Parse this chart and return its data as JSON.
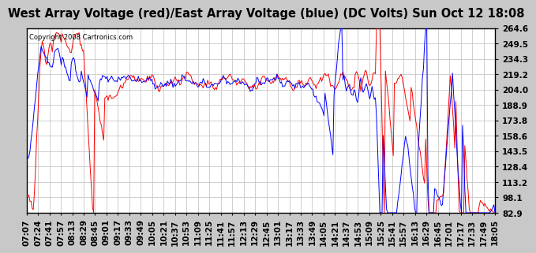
{
  "title": "West Array Voltage (red)/East Array Voltage (blue) (DC Volts) Sun Oct 12 18:08",
  "copyright": "Copyright 2008 Cartronics.com",
  "y_ticks": [
    82.9,
    98.1,
    113.2,
    128.4,
    143.5,
    158.6,
    173.8,
    188.9,
    204.0,
    219.2,
    234.3,
    249.5,
    264.6
  ],
  "x_tick_labels": [
    "07:07",
    "07:24",
    "07:41",
    "07:57",
    "08:13",
    "08:29",
    "08:45",
    "09:01",
    "09:17",
    "09:33",
    "09:49",
    "10:05",
    "10:21",
    "10:37",
    "10:53",
    "11:09",
    "11:25",
    "11:41",
    "11:57",
    "12:13",
    "12:29",
    "12:45",
    "13:01",
    "13:17",
    "13:33",
    "13:49",
    "14:05",
    "14:21",
    "14:37",
    "14:53",
    "15:09",
    "15:25",
    "15:41",
    "15:57",
    "16:13",
    "16:29",
    "16:45",
    "17:01",
    "17:17",
    "17:33",
    "17:49",
    "18:05"
  ],
  "plot_bg_color": "#ffffff",
  "fig_bg_color": "#c8c8c8",
  "grid_color": "#c8c8c8",
  "red_color": "#ff0000",
  "blue_color": "#0000ff",
  "title_fontsize": 10.5,
  "tick_fontsize": 7.5,
  "ymin": 82.9,
  "ymax": 264.6
}
